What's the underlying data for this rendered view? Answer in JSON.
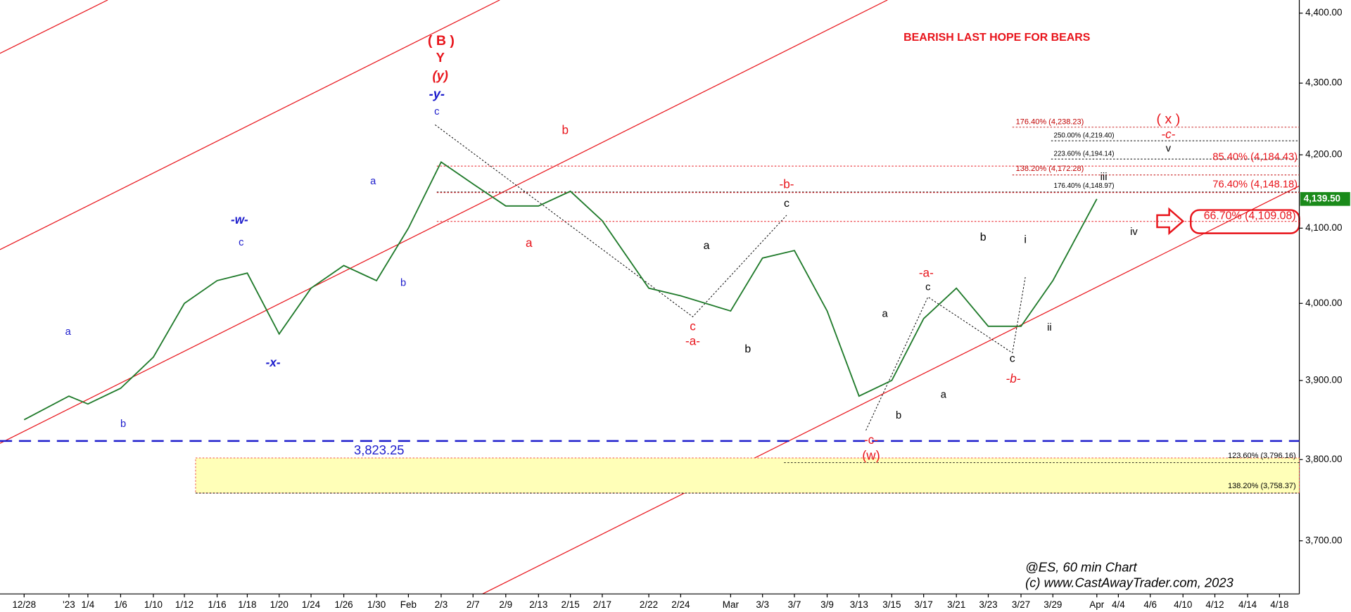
{
  "chart_data": {
    "type": "line",
    "log": true,
    "color": "#1f7a2a",
    "categories": [
      "12/28",
      "'23",
      "1/4",
      "1/6",
      "1/10",
      "1/12",
      "1/16",
      "1/18",
      "1/20",
      "1/24",
      "1/26",
      "1/30",
      "Feb",
      "2/3",
      "2/7",
      "2/9",
      "2/13",
      "2/15",
      "2/17",
      "2/22",
      "2/24",
      "Mar",
      "3/3",
      "3/7",
      "3/9",
      "3/13",
      "3/15",
      "3/17",
      "3/21",
      "3/23",
      "3/27",
      "3/29",
      "Apr",
      "4/4",
      "4/6",
      "4/10",
      "4/12",
      "4/14",
      "4/18"
    ],
    "values": [
      3850,
      3880,
      3870,
      3890,
      3930,
      4000,
      4030,
      4040,
      3960,
      4020,
      4050,
      4030,
      4100,
      4190,
      4160,
      4130,
      4130,
      4150,
      4110,
      4020,
      4010,
      3990,
      4060,
      4070,
      3990,
      3880,
      3900,
      3980,
      4020,
      3970,
      3970,
      4030,
      4139.5,
      null,
      null,
      null,
      null,
      null,
      null
    ],
    "ylim": [
      3636,
      4419
    ],
    "yticks": [
      {
        "value": 3700,
        "label": "3,700.00"
      },
      {
        "value": 3800,
        "label": "3,800.00"
      },
      {
        "value": 3900,
        "label": "3,900.00"
      },
      {
        "value": 4000,
        "label": "4,000.00"
      },
      {
        "value": 4100,
        "label": "4,100.00"
      },
      {
        "value": 4200,
        "label": "4,200.00"
      },
      {
        "value": 4300,
        "label": "4,300.00"
      },
      {
        "value": 4400,
        "label": "4,400.00"
      }
    ],
    "last_price": {
      "value": 4139.5,
      "label": "4,139.50"
    },
    "support_line": {
      "value": 3823.25,
      "label": "3,823.25",
      "color": "#1c1ccc"
    },
    "support_zone": {
      "values": [
        3802,
        3758.37
      ],
      "color": "#ffffb8"
    },
    "fib_levels": [
      {
        "value": 4238.23,
        "label": "176.40% (4,238.23)",
        "color": "#c00000"
      },
      {
        "value": 4219.4,
        "label": "250.00% (4,219.40)",
        "color": "#000000"
      },
      {
        "value": 4194.14,
        "label": "223.60% (4,194.14)",
        "color": "#000000"
      },
      {
        "value": 4184.43,
        "label": "85.40% (4,184.43)",
        "color": "#e8141b"
      },
      {
        "value": 4172.28,
        "label": "138.20% (4,172.28)",
        "color": "#c00000"
      },
      {
        "value": 4148.97,
        "label": "176.40% (4,148.97)",
        "color": "#000000"
      },
      {
        "value": 4148.18,
        "label": "76.40% (4,148.18)",
        "color": "#e8141b"
      },
      {
        "value": 4109.08,
        "label": "66.70% (4,109.08)",
        "color": "#e8141b"
      },
      {
        "value": 3796.16,
        "label": "123.60% (3,796.16)",
        "color": "#000000"
      },
      {
        "value": 3758.37,
        "label": "138.20% (3,758.37)",
        "color": "#000000"
      }
    ],
    "annotations": [
      {
        "text": "( B )",
        "color": "#e8141b"
      },
      {
        "text": "Y",
        "color": "#e8141b"
      },
      {
        "text": "(y)",
        "color": "#e8141b"
      },
      {
        "text": "-y-",
        "color": "#1c1ccc"
      },
      {
        "text": "c",
        "color": "#1c1ccc"
      },
      {
        "text": "BEARISH LAST HOPE FOR BEARS",
        "color": "#e8141b"
      },
      {
        "text": "-w-",
        "color": "#1c1ccc"
      },
      {
        "text": "c",
        "color": "#1c1ccc"
      },
      {
        "text": "a",
        "color": "#1c1ccc"
      },
      {
        "text": "b",
        "color": "#1c1ccc"
      },
      {
        "text": "a",
        "color": "#1c1ccc"
      },
      {
        "text": "b",
        "color": "#1c1ccc"
      },
      {
        "text": "-x-",
        "color": "#1c1ccc"
      },
      {
        "text": "b",
        "color": "#e8141b"
      },
      {
        "text": "a",
        "color": "#e8141b"
      },
      {
        "text": "-b-",
        "color": "#e8141b"
      },
      {
        "text": "c",
        "color": "#000000"
      },
      {
        "text": "a",
        "color": "#000000"
      },
      {
        "text": "c",
        "color": "#e8141b"
      },
      {
        "text": "-a-",
        "color": "#e8141b"
      },
      {
        "text": "b",
        "color": "#000000"
      },
      {
        "text": "-a-",
        "color": "#e8141b"
      },
      {
        "text": "c",
        "color": "#000000"
      },
      {
        "text": "a",
        "color": "#000000"
      },
      {
        "text": "b",
        "color": "#000000"
      },
      {
        "text": "i",
        "color": "#000000"
      },
      {
        "text": "c",
        "color": "#000000"
      },
      {
        "text": "-b-",
        "color": "#e8141b"
      },
      {
        "text": "ii",
        "color": "#000000"
      },
      {
        "text": "iii",
        "color": "#000000"
      },
      {
        "text": "iv",
        "color": "#000000"
      },
      {
        "text": "v",
        "color": "#000000"
      },
      {
        "text": "-c-",
        "color": "#e8141b"
      },
      {
        "text": "( x )",
        "color": "#e8141b"
      },
      {
        "text": "b",
        "color": "#000000"
      },
      {
        "text": "a",
        "color": "#000000"
      },
      {
        "text": "-c-",
        "color": "#e8141b"
      },
      {
        "text": "(w)",
        "color": "#e8141b"
      },
      {
        "text": "@ES, 60 min Chart",
        "color": "#000000"
      },
      {
        "text": "(c) www.CastAwayTrader.com, 2023",
        "color": "#000000"
      }
    ]
  }
}
